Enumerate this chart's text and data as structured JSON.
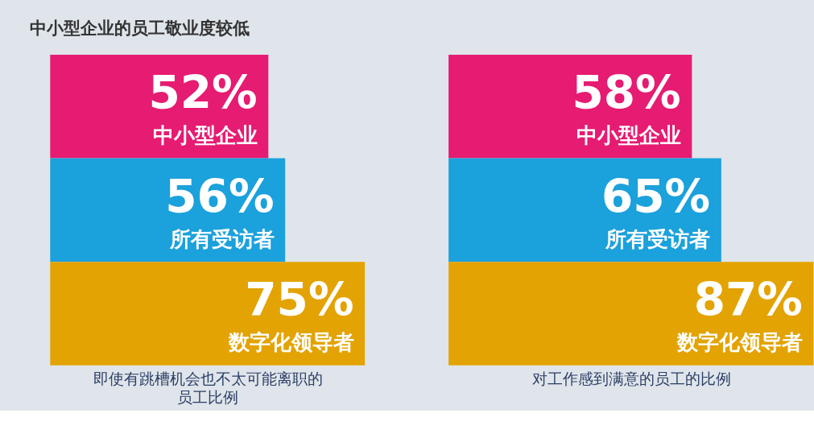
{
  "chart_data": [
    {
      "type": "bar",
      "orientation": "horizontal",
      "title": "中小型企业的员工敬业度较低",
      "categories": [
        "中小型企业",
        "所有受访者",
        "数字化领导者"
      ],
      "values": [
        52,
        56,
        75
      ],
      "value_labels": [
        "52%",
        "56%",
        "75%"
      ],
      "colors": [
        "#e61b72",
        "#1ba1dc",
        "#e3a302"
      ],
      "xlabel": "即使有跳槽机会也不太可能离职的员工比例"
    },
    {
      "type": "bar",
      "orientation": "horizontal",
      "categories": [
        "中小型企业",
        "所有受访者",
        "数字化领导者"
      ],
      "values": [
        58,
        65,
        87
      ],
      "value_labels": [
        "58%",
        "65%",
        "87%"
      ],
      "colors": [
        "#e61b72",
        "#1ba1dc",
        "#e3a302"
      ],
      "xlabel": "对工作感到满意的员工的比例"
    }
  ]
}
